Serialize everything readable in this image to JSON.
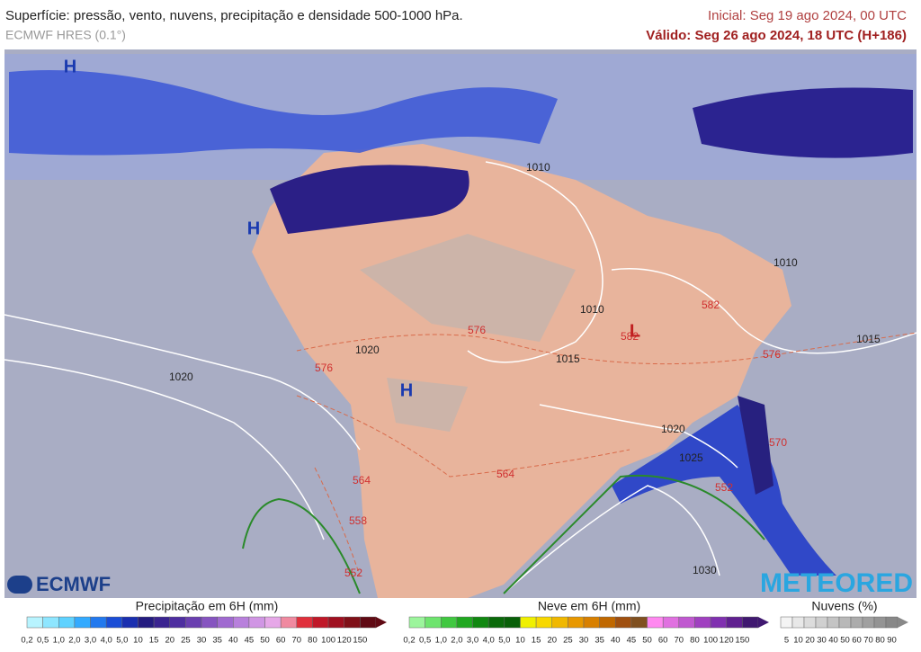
{
  "header": {
    "title": "Superfície: pressão, vento, nuvens, precipitação e densidade 500-1000 hPa.",
    "model": "ECMWF HRES (0.1°)",
    "initial": "Inicial: Seg 19 ago 2024, 00 UTC",
    "valid": "Válido: Seg 26 ago 2024, 18 UTC (H+186)"
  },
  "map": {
    "isobar_labels": [
      "1010",
      "1010",
      "1010",
      "1015",
      "1015",
      "1020",
      "1020",
      "1020",
      "1025",
      "1030"
    ],
    "thickness_labels": [
      "576",
      "576",
      "576",
      "582",
      "582",
      "570",
      "564",
      "564",
      "558",
      "552",
      "552"
    ],
    "pressure_centers": [
      "H",
      "H",
      "H",
      "L"
    ]
  },
  "logos": {
    "left": "ECMWF",
    "right": "METEORED"
  },
  "legends": [
    {
      "title": "Precipitação em 6H (mm)",
      "labels": [
        "0,2",
        "0,5",
        "1,0",
        "2,0",
        "3,0",
        "4,0",
        "5,0",
        "10",
        "15",
        "20",
        "25",
        "30",
        "35",
        "40",
        "45",
        "50",
        "60",
        "70",
        "80",
        "100",
        "120",
        "150"
      ]
    },
    {
      "title": "Neve em 6H (mm)",
      "labels": [
        "0,2",
        "0,5",
        "1,0",
        "2,0",
        "3,0",
        "4,0",
        "5,0",
        "10",
        "15",
        "20",
        "25",
        "30",
        "35",
        "40",
        "45",
        "50",
        "60",
        "70",
        "80",
        "100",
        "120",
        "150"
      ]
    },
    {
      "title": "Nuvens (%)",
      "labels": [
        "5",
        "10",
        "20",
        "30",
        "40",
        "50",
        "60",
        "70",
        "80",
        "90"
      ]
    }
  ]
}
